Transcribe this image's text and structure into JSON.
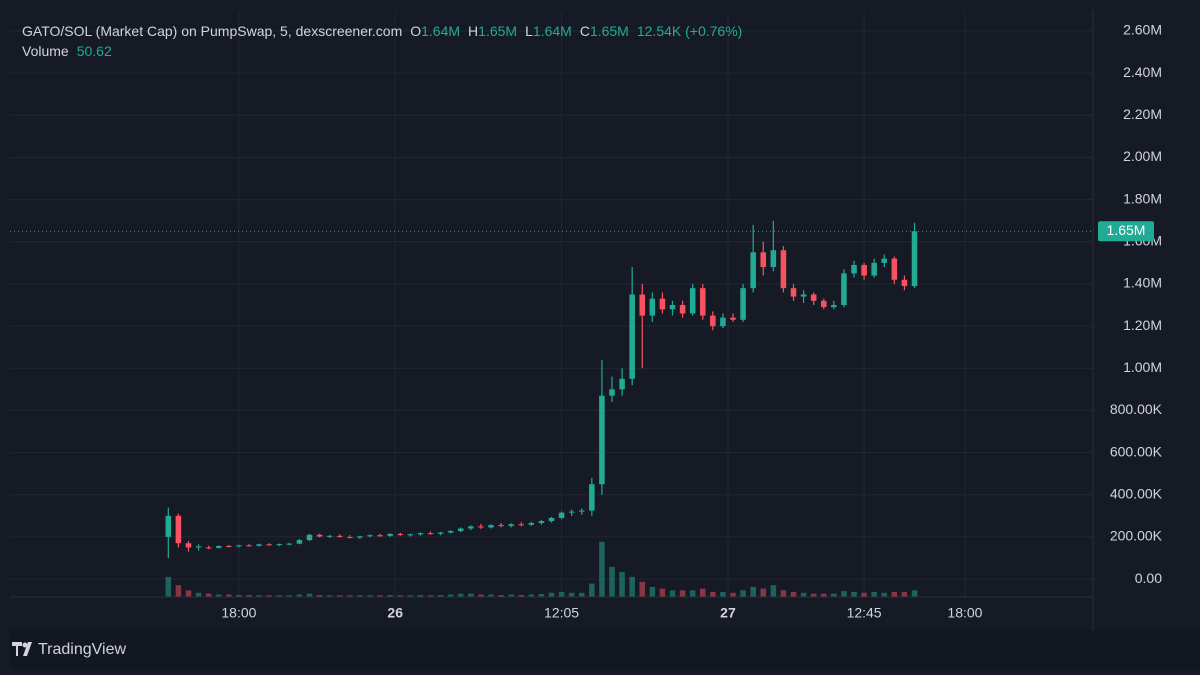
{
  "chart_data": {
    "type": "candlestick",
    "title": "GATO/SOL (Market Cap) on PumpSwap, 5, dexscreener.com",
    "ohlc_legend": [
      {
        "name": "O",
        "value": "1.64M"
      },
      {
        "name": "H",
        "value": "1.65M"
      },
      {
        "name": "L",
        "value": "1.64M"
      },
      {
        "name": "C",
        "value": "1.65M"
      }
    ],
    "change": "12.54K (+0.76%)",
    "volume_label": "Volume",
    "volume_value": "50.62",
    "last_price": {
      "value": 1650000,
      "label": "1.65M"
    },
    "up_color": "#22ab94",
    "down_color": "#f7525f",
    "candles": [
      [
        200000,
        340000,
        100000,
        300000
      ],
      [
        300000,
        310000,
        150000,
        170000
      ],
      [
        170000,
        180000,
        130000,
        150000
      ],
      [
        150000,
        165000,
        135000,
        155000
      ],
      [
        150000,
        158000,
        142000,
        148000
      ],
      [
        148000,
        160000,
        145000,
        157000
      ],
      [
        157000,
        162000,
        150000,
        155000
      ],
      [
        155000,
        163000,
        150000,
        160000
      ],
      [
        160000,
        166000,
        155000,
        158000
      ],
      [
        158000,
        168000,
        154000,
        165000
      ],
      [
        165000,
        170000,
        158000,
        162000
      ],
      [
        162000,
        168000,
        156000,
        166000
      ],
      [
        166000,
        172000,
        160000,
        168000
      ],
      [
        168000,
        190000,
        165000,
        185000
      ],
      [
        185000,
        215000,
        180000,
        210000
      ],
      [
        210000,
        215000,
        198000,
        202000
      ],
      [
        202000,
        210000,
        195000,
        205000
      ],
      [
        205000,
        212000,
        196000,
        200000
      ],
      [
        200000,
        208000,
        193000,
        197000
      ],
      [
        197000,
        206000,
        190000,
        203000
      ],
      [
        203000,
        212000,
        198000,
        208000
      ],
      [
        208000,
        215000,
        200000,
        205000
      ],
      [
        205000,
        218000,
        200000,
        214000
      ],
      [
        214000,
        220000,
        205000,
        209000
      ],
      [
        209000,
        216000,
        202000,
        212000
      ],
      [
        212000,
        222000,
        206000,
        218000
      ],
      [
        218000,
        226000,
        210000,
        215000
      ],
      [
        215000,
        224000,
        208000,
        221000
      ],
      [
        221000,
        232000,
        216000,
        228000
      ],
      [
        228000,
        245000,
        222000,
        240000
      ],
      [
        240000,
        255000,
        232000,
        250000
      ],
      [
        250000,
        262000,
        238000,
        245000
      ],
      [
        245000,
        260000,
        240000,
        256000
      ],
      [
        256000,
        266000,
        246000,
        252000
      ],
      [
        252000,
        265000,
        245000,
        260000
      ],
      [
        260000,
        270000,
        250000,
        258000
      ],
      [
        258000,
        272000,
        252000,
        266000
      ],
      [
        266000,
        280000,
        258000,
        275000
      ],
      [
        275000,
        295000,
        268000,
        290000
      ],
      [
        290000,
        320000,
        284000,
        315000
      ],
      [
        315000,
        330000,
        300000,
        320000
      ],
      [
        320000,
        335000,
        305000,
        325000
      ],
      [
        325000,
        480000,
        300000,
        450000
      ],
      [
        450000,
        1040000,
        400000,
        870000
      ],
      [
        870000,
        960000,
        840000,
        900000
      ],
      [
        900000,
        1000000,
        870000,
        950000
      ],
      [
        950000,
        1480000,
        920000,
        1350000
      ],
      [
        1350000,
        1400000,
        1000000,
        1250000
      ],
      [
        1250000,
        1360000,
        1220000,
        1330000
      ],
      [
        1330000,
        1360000,
        1260000,
        1280000
      ],
      [
        1280000,
        1320000,
        1250000,
        1300000
      ],
      [
        1300000,
        1320000,
        1240000,
        1260000
      ],
      [
        1260000,
        1400000,
        1250000,
        1380000
      ],
      [
        1380000,
        1400000,
        1230000,
        1250000
      ],
      [
        1250000,
        1270000,
        1180000,
        1200000
      ],
      [
        1200000,
        1260000,
        1190000,
        1240000
      ],
      [
        1240000,
        1260000,
        1220000,
        1230000
      ],
      [
        1230000,
        1400000,
        1220000,
        1380000
      ],
      [
        1380000,
        1680000,
        1360000,
        1550000
      ],
      [
        1550000,
        1600000,
        1440000,
        1480000
      ],
      [
        1480000,
        1700000,
        1460000,
        1560000
      ],
      [
        1560000,
        1580000,
        1360000,
        1380000
      ],
      [
        1380000,
        1400000,
        1320000,
        1340000
      ],
      [
        1340000,
        1370000,
        1310000,
        1350000
      ],
      [
        1350000,
        1360000,
        1300000,
        1320000
      ],
      [
        1320000,
        1330000,
        1280000,
        1290000
      ],
      [
        1290000,
        1320000,
        1280000,
        1300000
      ],
      [
        1300000,
        1470000,
        1290000,
        1450000
      ],
      [
        1450000,
        1510000,
        1430000,
        1490000
      ],
      [
        1490000,
        1500000,
        1420000,
        1440000
      ],
      [
        1440000,
        1520000,
        1430000,
        1500000
      ],
      [
        1500000,
        1540000,
        1480000,
        1520000
      ],
      [
        1520000,
        1530000,
        1400000,
        1420000
      ],
      [
        1420000,
        1440000,
        1370000,
        1390000
      ],
      [
        1390000,
        1690000,
        1380000,
        1650000
      ]
    ],
    "volumes": [
      1200,
      700,
      400,
      250,
      200,
      150,
      150,
      120,
      120,
      100,
      100,
      100,
      100,
      150,
      200,
      120,
      100,
      100,
      100,
      100,
      100,
      100,
      120,
      100,
      100,
      120,
      100,
      120,
      150,
      200,
      200,
      150,
      150,
      120,
      150,
      120,
      150,
      180,
      250,
      300,
      250,
      250,
      800,
      3300,
      1800,
      1500,
      1200,
      900,
      600,
      500,
      400,
      400,
      400,
      500,
      300,
      300,
      250,
      400,
      600,
      500,
      700,
      400,
      300,
      250,
      200,
      200,
      200,
      350,
      300,
      250,
      300,
      250,
      300,
      300,
      400
    ],
    "volume_lim": [
      0,
      4000
    ],
    "xlim": [
      -15.7,
      91.7
    ],
    "xticks": [
      {
        "value": 7,
        "label": "18:00"
      },
      {
        "value": 22.5,
        "label": "26"
      },
      {
        "value": 39,
        "label": "12:05"
      },
      {
        "value": 55.5,
        "label": "27"
      },
      {
        "value": 69,
        "label": "12:45"
      },
      {
        "value": 79,
        "label": "18:00"
      }
    ],
    "ylim": [
      -85000,
      2690000
    ],
    "yticks": [
      {
        "value": 0,
        "label": "0.00"
      },
      {
        "value": 200000,
        "label": "200.00K"
      },
      {
        "value": 400000,
        "label": "400.00K"
      },
      {
        "value": 600000,
        "label": "600.00K"
      },
      {
        "value": 800000,
        "label": "800.00K"
      },
      {
        "value": 1000000,
        "label": "1.00M"
      },
      {
        "value": 1200000,
        "label": "1.20M"
      },
      {
        "value": 1400000,
        "label": "1.40M"
      },
      {
        "value": 1600000,
        "label": "1.60M"
      },
      {
        "value": 1800000,
        "label": "1.80M"
      },
      {
        "value": 2000000,
        "label": "2.00M"
      },
      {
        "value": 2200000,
        "label": "2.20M"
      },
      {
        "value": 2400000,
        "label": "2.40M"
      },
      {
        "value": 2600000,
        "label": "2.60M"
      }
    ],
    "grid": true
  },
  "footer": {
    "brand": "TradingView"
  }
}
